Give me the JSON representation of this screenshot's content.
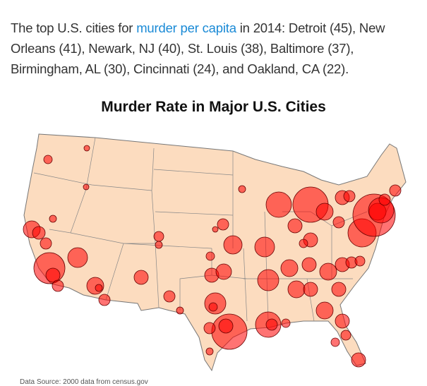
{
  "article": {
    "text_before": "The top U.S. cities for ",
    "link": "murder per capita",
    "text_after": " in 2014: Detroit (45), New Orleans (41), Newark, NJ (40), St. Louis (38), Baltimore (37), Birmingham, AL (30), Cincinnati (24), and Oakland, CA (22)."
  },
  "figure": {
    "title": "Murder Rate in Major U.S. Cities",
    "source": "Data Source: 2000 data from census.gov",
    "colors": {
      "land": "#fcdcbf",
      "border": "#777777",
      "bubble": "#ff0000"
    }
  }
}
